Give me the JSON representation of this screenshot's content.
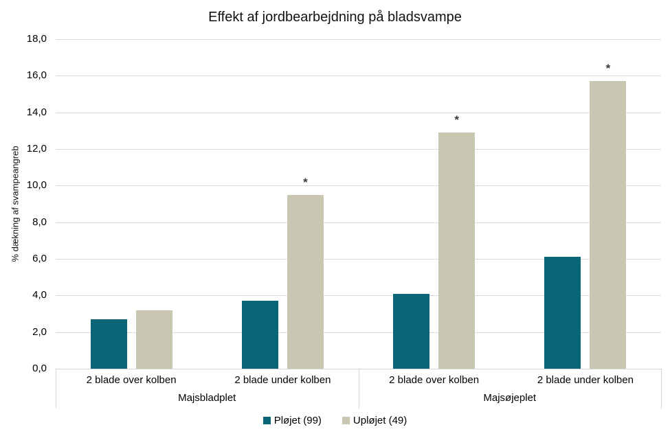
{
  "chart_data": {
    "type": "bar",
    "title": "Effekt af jordbearbejdning på bladsvampe",
    "ylabel": "% dækning af svampeangreb",
    "ylim": [
      0,
      18
    ],
    "ytick_step": 2,
    "ytick_labels": [
      "0,0",
      "2,0",
      "4,0",
      "6,0",
      "8,0",
      "10,0",
      "12,0",
      "14,0",
      "16,0",
      "18,0"
    ],
    "grid": true,
    "legend_position": "bottom",
    "groups": [
      {
        "label": "Majsbladplet",
        "categories": [
          "2 blade over kolben",
          "2 blade under kolben"
        ]
      },
      {
        "label": "Majsøjeplet",
        "categories": [
          "2 blade over kolben",
          "2 blade under kolben"
        ]
      }
    ],
    "series": [
      {
        "name": "Pløjet (99)",
        "color": "#0a6676",
        "values": [
          2.7,
          3.7,
          4.1,
          6.1
        ]
      },
      {
        "name": "Upløjet (49)",
        "color": "#c9c6b2",
        "values": [
          3.2,
          9.5,
          12.9,
          15.7
        ]
      }
    ],
    "annotations": [
      {
        "slot": 1,
        "series_index": 1,
        "text": "*"
      },
      {
        "slot": 2,
        "series_index": 1,
        "text": "*"
      },
      {
        "slot": 3,
        "series_index": 1,
        "text": "*"
      }
    ]
  },
  "colors": {
    "gridline": "#d9d9d9",
    "axis_line": "#d6d6d6",
    "annotation": "#3a3a3a",
    "text": "#111111"
  }
}
